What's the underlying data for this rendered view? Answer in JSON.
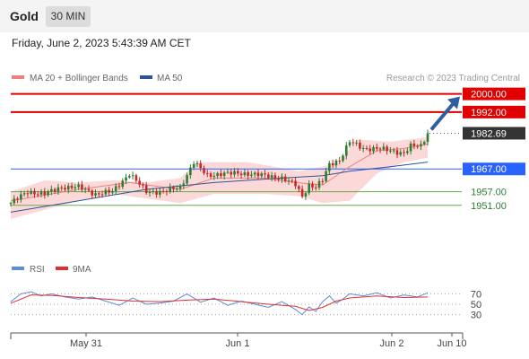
{
  "header": {
    "symbol": "Gold",
    "timeframe": "30 MIN",
    "datetime": "Friday, June 2, 2023 5:43:39 AM CET"
  },
  "legend": {
    "ma20": {
      "label": "MA 20 + Bollinger Bands",
      "color": "#f08080"
    },
    "ma50": {
      "label": "MA 50",
      "color": "#2f5496"
    },
    "copyright": "Research © 2023 Trading Central"
  },
  "rsi_legend": {
    "rsi": "RSI",
    "ma9": "9MA"
  },
  "colors": {
    "up": "#2e7d32",
    "down": "#c62828",
    "resistance": "#e00000",
    "support_blue": "#2962ff",
    "support_green": "#6aa84f",
    "band": "#fcd9d9",
    "rsi": "#5b8dd9",
    "rsi_ma": "#e03030",
    "arrow": "#2f5f9e"
  },
  "chart_data": [
    {
      "type": "candlestick",
      "y_range": [
        1930,
        2003
      ],
      "x_ticks": [
        "May 31",
        "Jun 1",
        "Jun 2",
        "Jun 10"
      ],
      "last_price": 1982.69,
      "levels": [
        {
          "value": 2000.0,
          "label": "2000.00",
          "kind": "resistance"
        },
        {
          "value": 1992.0,
          "label": "1992.00",
          "kind": "resistance"
        },
        {
          "value": 1967.0,
          "label": "1967.00",
          "kind": "support_blue"
        },
        {
          "value": 1957.0,
          "label": "1957.00",
          "kind": "support_green"
        },
        {
          "value": 1951.0,
          "label": "1951.00",
          "kind": "support_green"
        }
      ],
      "key_closes": [
        [
          0,
          1952
        ],
        [
          5,
          1957
        ],
        [
          10,
          1956
        ],
        [
          15,
          1959
        ],
        [
          20,
          1959
        ],
        [
          25,
          1956
        ],
        [
          30,
          1957
        ],
        [
          35,
          1965
        ],
        [
          40,
          1957
        ],
        [
          45,
          1957
        ],
        [
          50,
          1959
        ],
        [
          54,
          1970
        ],
        [
          58,
          1964
        ],
        [
          62,
          1965
        ],
        [
          66,
          1965
        ],
        [
          70,
          1965
        ],
        [
          75,
          1964
        ],
        [
          80,
          1963
        ],
        [
          84,
          1960
        ],
        [
          86,
          1955
        ],
        [
          88,
          1960
        ],
        [
          90,
          1959
        ],
        [
          92,
          1962
        ],
        [
          94,
          1969
        ],
        [
          97,
          1971
        ],
        [
          100,
          1979
        ],
        [
          104,
          1976
        ],
        [
          108,
          1976
        ],
        [
          112,
          1975
        ],
        [
          116,
          1974
        ],
        [
          118,
          1977
        ],
        [
          121,
          1977
        ],
        [
          123,
          1982.69
        ]
      ],
      "series": [
        {
          "name": "MA 20",
          "values": [
            [
              0,
              1953
            ],
            [
              20,
              1958
            ],
            [
              35,
              1961
            ],
            [
              50,
              1958
            ],
            [
              60,
              1963
            ],
            [
              75,
              1963
            ],
            [
              84,
              1961
            ],
            [
              92,
              1960
            ],
            [
              100,
              1968
            ],
            [
              108,
              1975
            ],
            [
              116,
              1976
            ],
            [
              123,
              1978
            ]
          ]
        },
        {
          "name": "MA 50",
          "values": [
            [
              0,
              1948
            ],
            [
              20,
              1953
            ],
            [
              40,
              1958
            ],
            [
              60,
              1961
            ],
            [
              80,
              1963
            ],
            [
              92,
              1964
            ],
            [
              100,
              1966
            ],
            [
              112,
              1968
            ],
            [
              123,
              1970
            ]
          ]
        }
      ],
      "bollinger": {
        "upper": [
          [
            0,
            1957
          ],
          [
            10,
            1962
          ],
          [
            20,
            1961
          ],
          [
            30,
            1962
          ],
          [
            40,
            1961
          ],
          [
            50,
            1963
          ],
          [
            55,
            1970
          ],
          [
            70,
            1970
          ],
          [
            85,
            1966
          ],
          [
            92,
            1968
          ],
          [
            97,
            1970
          ],
          [
            102,
            1980
          ],
          [
            112,
            1979
          ],
          [
            123,
            1981
          ]
        ],
        "lower": [
          [
            0,
            1945
          ],
          [
            10,
            1949
          ],
          [
            20,
            1953
          ],
          [
            30,
            1956
          ],
          [
            40,
            1954
          ],
          [
            50,
            1952
          ],
          [
            60,
            1956
          ],
          [
            75,
            1956
          ],
          [
            85,
            1955
          ],
          [
            92,
            1952
          ],
          [
            100,
            1953
          ],
          [
            108,
            1965
          ],
          [
            116,
            1970
          ],
          [
            123,
            1972
          ]
        ]
      }
    },
    {
      "type": "line",
      "title": "RSI",
      "y_ticks": [
        70,
        50,
        30
      ],
      "series": [
        {
          "name": "RSI",
          "values": [
            [
              0,
              55
            ],
            [
              3,
              70
            ],
            [
              6,
              74
            ],
            [
              9,
              66
            ],
            [
              12,
              70
            ],
            [
              16,
              64
            ],
            [
              20,
              60
            ],
            [
              24,
              64
            ],
            [
              28,
              56
            ],
            [
              32,
              48
            ],
            [
              36,
              62
            ],
            [
              40,
              50
            ],
            [
              44,
              52
            ],
            [
              48,
              56
            ],
            [
              52,
              70
            ],
            [
              56,
              54
            ],
            [
              60,
              62
            ],
            [
              64,
              48
            ],
            [
              68,
              56
            ],
            [
              72,
              50
            ],
            [
              76,
              44
            ],
            [
              80,
              55
            ],
            [
              84,
              40
            ],
            [
              86,
              30
            ],
            [
              88,
              45
            ],
            [
              90,
              36
            ],
            [
              92,
              55
            ],
            [
              94,
              66
            ],
            [
              96,
              52
            ],
            [
              98,
              60
            ],
            [
              100,
              70
            ],
            [
              104,
              66
            ],
            [
              108,
              72
            ],
            [
              112,
              62
            ],
            [
              116,
              68
            ],
            [
              120,
              64
            ],
            [
              123,
              72
            ]
          ]
        },
        {
          "name": "9MA",
          "values": [
            [
              0,
              52
            ],
            [
              6,
              68
            ],
            [
              12,
              67
            ],
            [
              20,
              63
            ],
            [
              28,
              60
            ],
            [
              36,
              56
            ],
            [
              44,
              55
            ],
            [
              52,
              58
            ],
            [
              60,
              60
            ],
            [
              68,
              55
            ],
            [
              76,
              50
            ],
            [
              84,
              46
            ],
            [
              88,
              38
            ],
            [
              92,
              44
            ],
            [
              96,
              56
            ],
            [
              100,
              62
            ],
            [
              108,
              66
            ],
            [
              116,
              63
            ],
            [
              123,
              64
            ]
          ]
        }
      ]
    }
  ]
}
